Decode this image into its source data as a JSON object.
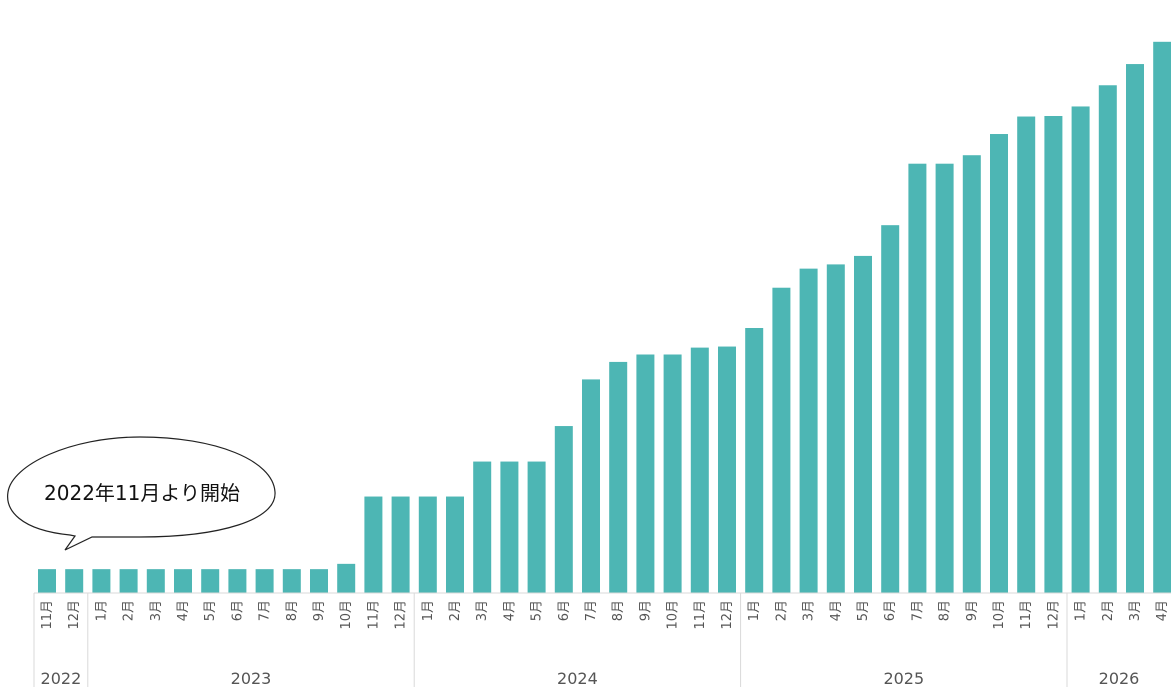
{
  "callout": {
    "text": "2022年11月より開始"
  },
  "chart_data": {
    "type": "bar",
    "title": "",
    "xlabel": "",
    "ylabel": "",
    "ylim": [
      0,
      100
    ],
    "grid": false,
    "legend": "none",
    "bar_color": "#4DB6B4",
    "categories": [
      "11月",
      "12月",
      "1月",
      "2月",
      "3月",
      "4月",
      "5月",
      "6月",
      "7月",
      "8月",
      "9月",
      "10月",
      "11月",
      "12月",
      "1月",
      "2月",
      "3月",
      "4月",
      "5月",
      "6月",
      "7月",
      "8月",
      "9月",
      "10月",
      "11月",
      "12月",
      "1月",
      "2月",
      "3月",
      "4月",
      "5月",
      "6月",
      "7月",
      "8月",
      "9月",
      "10月",
      "11月",
      "12月",
      "1月",
      "2月",
      "3月",
      "4月"
    ],
    "years": [
      {
        "label": "2022",
        "start": 0,
        "count": 2
      },
      {
        "label": "2023",
        "start": 2,
        "count": 12
      },
      {
        "label": "2024",
        "start": 14,
        "count": 12
      },
      {
        "label": "2025",
        "start": 26,
        "count": 12
      },
      {
        "label": "2026",
        "start": 38,
        "count": 4
      }
    ],
    "values": [
      4.5,
      4.5,
      4.5,
      4.5,
      4.5,
      4.5,
      4.5,
      4.5,
      4.5,
      4.5,
      4.5,
      5.5,
      18.2,
      18.2,
      18.2,
      18.2,
      24.8,
      24.8,
      24.8,
      31.5,
      40.3,
      43.6,
      45.0,
      45.0,
      46.3,
      46.5,
      50.0,
      57.6,
      61.2,
      62.0,
      63.6,
      69.4,
      81.0,
      81.0,
      82.6,
      86.6,
      89.9,
      90.0,
      91.8,
      95.8,
      99.8,
      104.0
    ]
  }
}
